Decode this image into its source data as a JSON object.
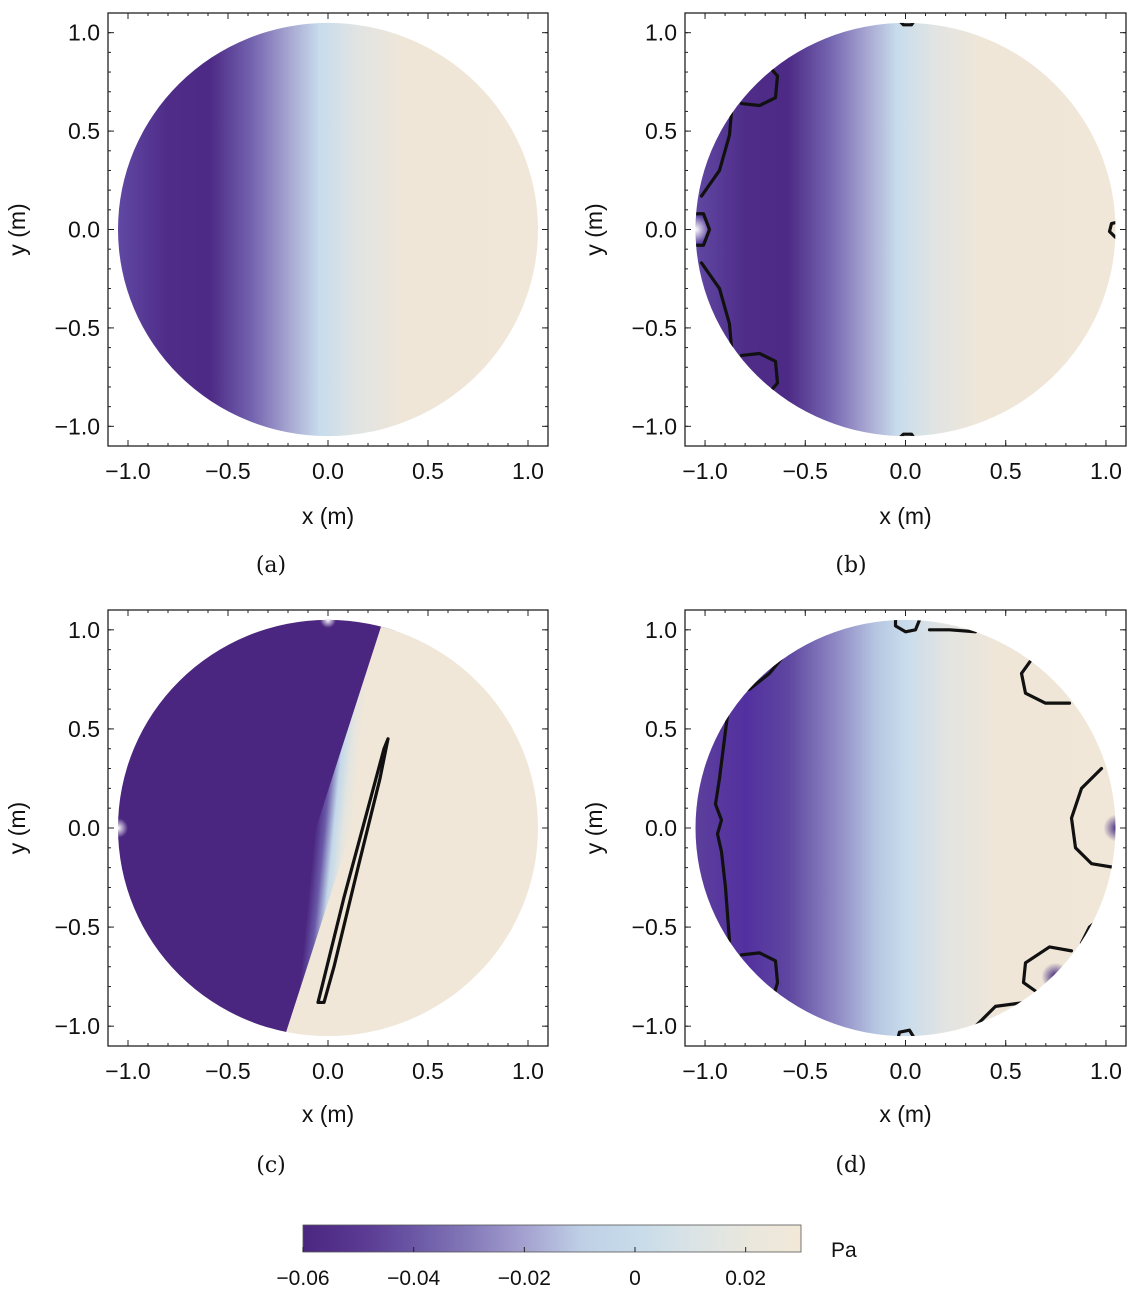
{
  "chart_data": [
    {
      "type": "heatmap",
      "caption": "(a)",
      "xlabel": "x (m)",
      "ylabel": "y (m)",
      "xlim": [
        -1.1,
        1.1
      ],
      "ylim": [
        -1.1,
        1.1
      ],
      "x_ticks": [
        "−1.0",
        "−0.5",
        "0.0",
        "0.5",
        "1.0"
      ],
      "y_ticks": [
        "1.0",
        "0.5",
        "0.0",
        "−0.5",
        "−1.0"
      ],
      "domain": "disk of radius 1.05 m",
      "field_min_at_x": -0.75,
      "contours": []
    },
    {
      "type": "heatmap",
      "caption": "(b)",
      "xlabel": "x (m)",
      "ylabel": "y (m)",
      "xlim": [
        -1.1,
        1.1
      ],
      "ylim": [
        -1.1,
        1.1
      ],
      "x_ticks": [
        "−1.0",
        "−0.5",
        "0.0",
        "0.5",
        "1.0"
      ],
      "y_ticks": [
        "1.0",
        "0.5",
        "0.0",
        "−0.5",
        "−1.0"
      ],
      "domain": "disk of radius 1.05 m",
      "field_min_at_x": -0.75,
      "contours": [
        [
          [
            -0.78,
            0.82
          ],
          [
            -0.7,
            0.85
          ],
          [
            -0.64,
            0.78
          ],
          [
            -0.65,
            0.67
          ],
          [
            -0.73,
            0.63
          ],
          [
            -0.82,
            0.64
          ]
        ],
        [
          [
            -0.87,
            0.6
          ],
          [
            -0.88,
            0.48
          ],
          [
            -0.93,
            0.3
          ],
          [
            -1.02,
            0.17
          ]
        ],
        [
          [
            -1.07,
            0.08
          ],
          [
            -1.01,
            0.08
          ],
          [
            -0.98,
            0.0
          ],
          [
            -1.01,
            -0.08
          ],
          [
            -1.07,
            -0.08
          ]
        ],
        [
          [
            -1.02,
            -0.17
          ],
          [
            -0.93,
            -0.3
          ],
          [
            -0.88,
            -0.48
          ],
          [
            -0.87,
            -0.6
          ]
        ],
        [
          [
            -0.82,
            -0.64
          ],
          [
            -0.73,
            -0.63
          ],
          [
            -0.65,
            -0.67
          ],
          [
            -0.64,
            -0.78
          ],
          [
            -0.7,
            -0.85
          ],
          [
            -0.78,
            -0.82
          ]
        ],
        [
          [
            -0.04,
            1.07
          ],
          [
            -0.01,
            1.04
          ],
          [
            0.03,
            1.04
          ],
          [
            0.05,
            1.07
          ]
        ],
        [
          [
            0.75,
            0.78
          ],
          [
            0.77,
            0.74
          ],
          [
            0.8,
            0.75
          ]
        ],
        [
          [
            1.07,
            0.04
          ],
          [
            1.03,
            0.03
          ],
          [
            1.02,
            -0.01
          ],
          [
            1.05,
            -0.04
          ],
          [
            1.07,
            -0.04
          ]
        ],
        [
          [
            0.75,
            -0.78
          ],
          [
            0.77,
            -0.74
          ],
          [
            0.8,
            -0.75
          ]
        ],
        [
          [
            -0.04,
            -1.07
          ],
          [
            -0.01,
            -1.04
          ],
          [
            0.03,
            -1.04
          ],
          [
            0.05,
            -1.07
          ]
        ]
      ]
    },
    {
      "type": "heatmap",
      "caption": "(c)",
      "xlabel": "x (m)",
      "ylabel": "y (m)",
      "xlim": [
        -1.1,
        1.1
      ],
      "ylim": [
        -1.1,
        1.1
      ],
      "x_ticks": [
        "−1.0",
        "−0.5",
        "0.0",
        "0.5",
        "1.0"
      ],
      "y_ticks": [
        "1.0",
        "0.5",
        "0.0",
        "−0.5",
        "−1.0"
      ],
      "domain": "disk of radius 1.05 m",
      "field_min_at_x": -0.75,
      "contours": [
        [
          [
            0.3,
            0.45
          ],
          [
            0.28,
            0.4
          ],
          [
            0.2,
            0.1
          ],
          [
            0.08,
            -0.35
          ],
          [
            -0.03,
            -0.8
          ],
          [
            -0.05,
            -0.88
          ],
          [
            -0.02,
            -0.88
          ],
          [
            0.03,
            -0.7
          ],
          [
            0.15,
            -0.2
          ],
          [
            0.26,
            0.25
          ],
          [
            0.3,
            0.45
          ]
        ]
      ]
    },
    {
      "type": "heatmap",
      "caption": "(d)",
      "xlabel": "x (m)",
      "ylabel": "y (m)",
      "xlim": [
        -1.1,
        1.1
      ],
      "ylim": [
        -1.1,
        1.1
      ],
      "x_ticks": [
        "−1.0",
        "−0.5",
        "0.0",
        "0.5",
        "1.0"
      ],
      "y_ticks": [
        "1.0",
        "0.5",
        "0.0",
        "−0.5",
        "−1.0"
      ],
      "domain": "disk of radius 1.05 m",
      "field_min_at_x": -0.75,
      "contours": [
        [
          [
            -0.88,
            0.69
          ],
          [
            -0.78,
            0.7
          ],
          [
            -0.68,
            0.78
          ],
          [
            -0.6,
            0.88
          ],
          [
            -0.45,
            0.97
          ]
        ],
        [
          [
            -0.89,
            0.57
          ],
          [
            -0.93,
            0.25
          ],
          [
            -0.95,
            0.12
          ],
          [
            -0.92,
            0.04
          ],
          [
            -0.94,
            -0.03
          ],
          [
            -0.92,
            -0.12
          ],
          [
            -0.9,
            -0.3
          ],
          [
            -0.88,
            -0.57
          ]
        ],
        [
          [
            -0.82,
            -0.64
          ],
          [
            -0.73,
            -0.63
          ],
          [
            -0.65,
            -0.67
          ],
          [
            -0.64,
            -0.78
          ],
          [
            -0.66,
            -0.85
          ]
        ],
        [
          [
            -0.05,
            1.07
          ],
          [
            -0.05,
            1.02
          ],
          [
            0.0,
            0.99
          ],
          [
            0.05,
            1.0
          ],
          [
            0.07,
            1.05
          ]
        ],
        [
          [
            0.12,
            1.0
          ],
          [
            0.22,
            1.0
          ],
          [
            0.35,
            0.99
          ]
        ],
        [
          [
            0.63,
            0.85
          ],
          [
            0.58,
            0.78
          ],
          [
            0.6,
            0.68
          ],
          [
            0.7,
            0.63
          ],
          [
            0.82,
            0.63
          ]
        ],
        [
          [
            0.98,
            0.3
          ],
          [
            0.88,
            0.2
          ],
          [
            0.83,
            0.05
          ],
          [
            0.85,
            -0.1
          ],
          [
            0.93,
            -0.18
          ],
          [
            1.05,
            -0.2
          ]
        ],
        [
          [
            0.88,
            -0.58
          ],
          [
            0.92,
            -0.5
          ],
          [
            0.98,
            -0.45
          ]
        ],
        [
          [
            0.83,
            -0.62
          ],
          [
            0.72,
            -0.6
          ],
          [
            0.6,
            -0.68
          ],
          [
            0.59,
            -0.78
          ],
          [
            0.66,
            -0.83
          ]
        ],
        [
          [
            0.35,
            -1.0
          ],
          [
            0.45,
            -0.9
          ],
          [
            0.6,
            -0.88
          ]
        ],
        [
          [
            -0.04,
            -1.07
          ],
          [
            -0.03,
            -1.03
          ],
          [
            0.02,
            -1.02
          ],
          [
            0.05,
            -1.07
          ]
        ]
      ]
    }
  ],
  "colorbar": {
    "ticks": [
      {
        "value": -0.06,
        "label": "−0.06"
      },
      {
        "value": -0.04,
        "label": "−0.04"
      },
      {
        "value": -0.02,
        "label": "−0.02"
      },
      {
        "value": 0,
        "label": "0"
      },
      {
        "value": 0.02,
        "label": "0.02"
      }
    ],
    "range": [
      -0.06,
      0.03
    ],
    "unit": "Pa"
  },
  "colors": {
    "dark_purple": "#4a2680",
    "mid_purple": "#8a80c0",
    "light_blue": "#c5dced",
    "cream": "#f1e8d6"
  }
}
